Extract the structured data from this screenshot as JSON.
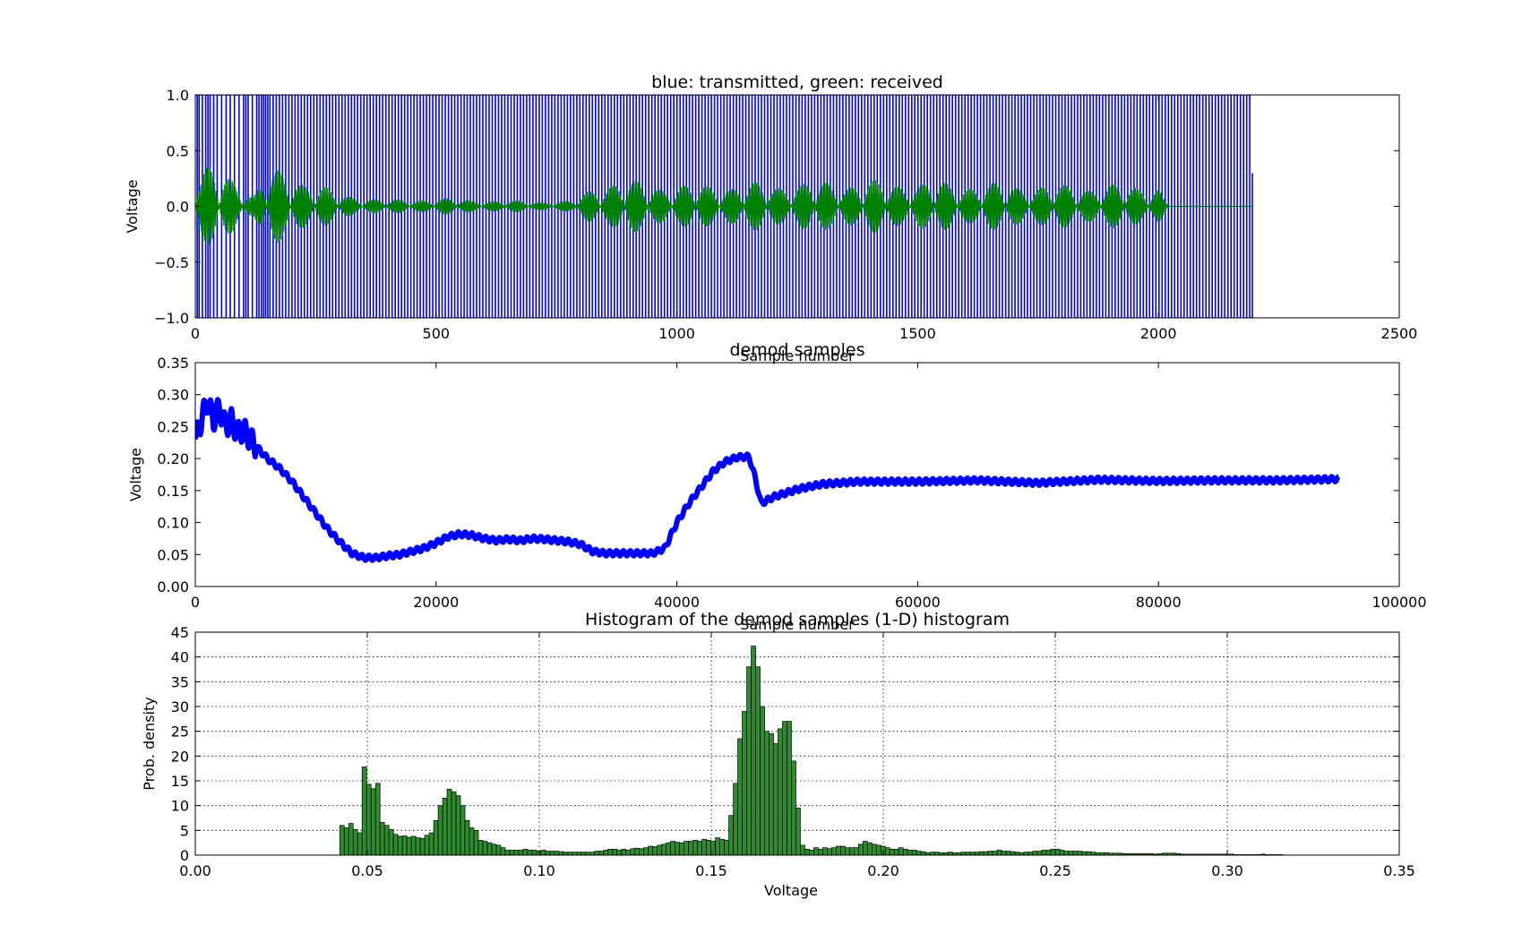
{
  "chart_data": [
    {
      "type": "line",
      "title": "blue: transmitted, green: received",
      "xlabel": "Sample number",
      "ylabel": "Voltage",
      "xlim": [
        0,
        2500
      ],
      "ylim": [
        -1.0,
        1.0
      ],
      "xticks": [
        "0",
        "500",
        "1000",
        "1500",
        "2000",
        "2500"
      ],
      "yticks": [
        "−1.0",
        "−0.5",
        "0.0",
        "0.5",
        "1.0"
      ],
      "grid": false,
      "series": [
        {
          "color": "#0000ff",
          "style": "square-wave bursts between -1 and 1",
          "envelope": {
            "x": [
              0,
              2195
            ],
            "amplitude": [
              1.0,
              1.0
            ]
          }
        },
        {
          "color": "#008000",
          "style": "oscillation",
          "envelope": {
            "x": [
              0,
              40,
              80,
              120,
              150,
              200,
              300,
              400,
              500,
              600,
              700,
              780,
              830,
              880,
              930,
              1000,
              1200,
              1400,
              1600,
              1800,
              2000,
              2020,
              2195
            ],
            "amplitude": [
              0.3,
              0.38,
              0.3,
              0.1,
              0.35,
              0.32,
              0.12,
              0.06,
              0.08,
              0.06,
              0.05,
              0.05,
              0.2,
              0.26,
              0.22,
              0.2,
              0.22,
              0.24,
              0.22,
              0.2,
              0.2,
              0.0,
              0.0
            ]
          }
        }
      ]
    },
    {
      "type": "line",
      "title": "demod samples",
      "xlabel": "Sample number",
      "ylabel": "Voltage",
      "xlim": [
        0,
        100000
      ],
      "ylim": [
        0.0,
        0.35
      ],
      "xticks": [
        "0",
        "20000",
        "40000",
        "60000",
        "80000",
        "100000"
      ],
      "yticks": [
        "0.00",
        "0.05",
        "0.10",
        "0.15",
        "0.20",
        "0.25",
        "0.30",
        "0.35"
      ],
      "grid": false,
      "series": [
        {
          "color": "#0000ff",
          "x": [
            0,
            500,
            1000,
            1500,
            2000,
            2500,
            3000,
            3500,
            4000,
            5000,
            6000,
            7000,
            8000,
            9000,
            10000,
            11000,
            12000,
            13000,
            14000,
            15000,
            16000,
            17000,
            18000,
            19000,
            20000,
            21000,
            22000,
            23000,
            24000,
            25000,
            26000,
            27000,
            28000,
            29000,
            30000,
            31000,
            32000,
            33000,
            34000,
            35000,
            36000,
            37000,
            38000,
            39000,
            40000,
            41000,
            42000,
            43000,
            44000,
            45000,
            46000,
            46500,
            47000,
            48000,
            50000,
            52000,
            55000,
            60000,
            65000,
            70000,
            75000,
            80000,
            85000,
            90000,
            95000
          ],
          "y": [
            0.23,
            0.26,
            0.29,
            0.26,
            0.28,
            0.25,
            0.26,
            0.24,
            0.245,
            0.22,
            0.2,
            0.185,
            0.165,
            0.14,
            0.115,
            0.09,
            0.07,
            0.052,
            0.045,
            0.045,
            0.048,
            0.05,
            0.055,
            0.06,
            0.068,
            0.078,
            0.082,
            0.08,
            0.075,
            0.072,
            0.074,
            0.072,
            0.075,
            0.074,
            0.072,
            0.07,
            0.066,
            0.055,
            0.052,
            0.052,
            0.052,
            0.052,
            0.052,
            0.06,
            0.1,
            0.13,
            0.155,
            0.18,
            0.195,
            0.202,
            0.203,
            0.17,
            0.13,
            0.14,
            0.152,
            0.16,
            0.164,
            0.164,
            0.166,
            0.162,
            0.167,
            0.165,
            0.166,
            0.166,
            0.168
          ]
        }
      ]
    },
    {
      "type": "bar",
      "title": "Histogram of the demod samples (1-D) histogram",
      "xlabel": "Voltage",
      "ylabel": "Prob. density",
      "xlim": [
        0.0,
        0.35
      ],
      "ylim": [
        0,
        45
      ],
      "xticks": [
        "0.00",
        "0.05",
        "0.10",
        "0.15",
        "0.20",
        "0.25",
        "0.30",
        "0.35"
      ],
      "yticks": [
        "0",
        "5",
        "10",
        "15",
        "20",
        "25",
        "30",
        "35",
        "40",
        "45"
      ],
      "grid": true,
      "bar_color": "#2e8b2e",
      "bins": {
        "start": 0.042,
        "width": 0.0013
      },
      "values": [
        6,
        5.5,
        6.4,
        5.2,
        4.5,
        17.8,
        14.3,
        13.4,
        14.5,
        6.6,
        6.0,
        5.2,
        4.2,
        3.8,
        3.9,
        3.6,
        3.8,
        3.5,
        3.4,
        4.0,
        4.5,
        7.0,
        10.0,
        11.5,
        13.3,
        12.8,
        12.0,
        10.0,
        7.0,
        5.5,
        5.0,
        3.0,
        2.8,
        2.5,
        2.2,
        2.0,
        1.5,
        1.0,
        1.0,
        1.0,
        1.0,
        1.2,
        1.0,
        1.0,
        0.8,
        1.0,
        0.8,
        0.8,
        0.8,
        0.7,
        0.6,
        0.6,
        0.6,
        0.6,
        0.6,
        0.6,
        0.6,
        0.8,
        0.8,
        1.0,
        1.2,
        1.2,
        1.0,
        1.2,
        1.0,
        1.3,
        1.4,
        1.3,
        1.5,
        1.8,
        1.7,
        2.0,
        2.2,
        2.5,
        2.8,
        2.6,
        2.5,
        2.8,
        2.8,
        3.0,
        2.8,
        3.2,
        3.0,
        2.8,
        3.5,
        3.2,
        3.0,
        8.0,
        14.5,
        23.5,
        29.0,
        38.0,
        42.2,
        38.0,
        30.0,
        25.0,
        24.5,
        22.5,
        25.5,
        27.0,
        27.0,
        19.0,
        9.5,
        2.0,
        1.2,
        1.0,
        1.5,
        1.2,
        1.5,
        1.3,
        1.5,
        1.8,
        1.8,
        1.5,
        1.5,
        1.5,
        2.2,
        2.8,
        2.5,
        2.2,
        2.0,
        1.8,
        1.5,
        1.2,
        1.2,
        1.5,
        1.2,
        1.0,
        1.0,
        0.8,
        0.7,
        0.5,
        0.6,
        0.6,
        0.5,
        0.5,
        0.6,
        0.5,
        0.5,
        0.6,
        0.6,
        0.6,
        0.6,
        0.7,
        0.7,
        0.8,
        0.8,
        1.0,
        0.8,
        0.8,
        0.7,
        0.6,
        0.5,
        0.6,
        0.6,
        0.8,
        0.8,
        1.0,
        1.0,
        1.2,
        1.2,
        1.0,
        0.8,
        0.8,
        0.8,
        0.8,
        0.7,
        0.7,
        0.6,
        0.5,
        0.5,
        0.5,
        0.4,
        0.4,
        0.4,
        0.3,
        0.3,
        0.3,
        0.3,
        0.3,
        0.3,
        0.3,
        0.2,
        0.3,
        0.4,
        0.4,
        0.4,
        0.3,
        0.2,
        0.2,
        0.2,
        0.2,
        0.2,
        0.2,
        0.2,
        0.2,
        0.2,
        0.2,
        0.2,
        0.2,
        0.1,
        0.1,
        0.1,
        0.1,
        0.1,
        0.1,
        0.2,
        0.1,
        0.1,
        0.1,
        0.1
      ]
    }
  ]
}
